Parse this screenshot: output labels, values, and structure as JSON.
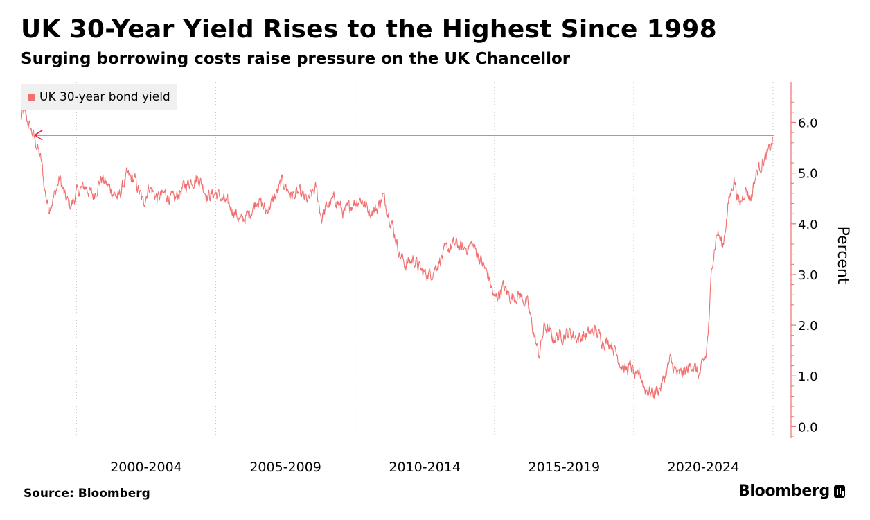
{
  "header": {
    "title": "UK 30-Year Yield Rises to the Highest Since 1998",
    "subtitle": "Surging borrowing costs raise pressure on the UK Chancellor"
  },
  "footer": {
    "source": "Source: Bloomberg",
    "brand": "Bloomberg",
    "brand_icon": "bloomberg-terminal-icon"
  },
  "colors": {
    "series": "#f07070",
    "reference_line": "#e8284a",
    "axis": "#f07070",
    "grid": "#c8c8c8",
    "legend_bg": "#f0f0f0"
  },
  "chart_data": {
    "type": "line",
    "title": "UK 30-Year Yield Rises to the Highest Since 1998",
    "subtitle": "Surging borrowing costs raise pressure on the UK Chancellor",
    "ylabel": "Percent",
    "xlabel": "",
    "ylim": [
      -0.2,
      6.8
    ],
    "xlim": [
      1998.0,
      2025.05
    ],
    "yticks": [
      0.0,
      1.0,
      2.0,
      3.0,
      4.0,
      5.0,
      6.0
    ],
    "ytick_labels": [
      "0.0",
      "1.0",
      "2.0",
      "3.0",
      "4.0",
      "5.0",
      "6.0"
    ],
    "y_axis_position": "right",
    "grid": "vertical dotted",
    "xgrid": [
      2000.0,
      2005.0,
      2010.0,
      2015.0,
      2020.0,
      2025.0
    ],
    "xtick_labels": [
      {
        "label": "2000-2004",
        "center": 2002.5
      },
      {
        "label": "2005-2009",
        "center": 2007.5
      },
      {
        "label": "2010-2014",
        "center": 2012.5
      },
      {
        "label": "2015-2019",
        "center": 2017.5
      },
      {
        "label": "2020-2024",
        "center": 2022.5
      }
    ],
    "legend": {
      "position": "top-left",
      "entries": [
        "UK 30-year bond yield"
      ]
    },
    "series": [
      {
        "name": "UK 30-year bond yield",
        "x": [
          1998.0,
          1998.1,
          1998.25,
          1998.45,
          1998.6,
          1998.75,
          1998.85,
          1999.0,
          1999.2,
          1999.4,
          1999.6,
          1999.8,
          2000.0,
          2000.3,
          2000.6,
          2000.9,
          2001.2,
          2001.5,
          2001.8,
          2002.1,
          2002.4,
          2002.6,
          2002.9,
          2003.2,
          2003.5,
          2003.8,
          2004.1,
          2004.4,
          2004.7,
          2005.0,
          2005.3,
          2005.6,
          2005.9,
          2006.2,
          2006.5,
          2006.8,
          2007.1,
          2007.4,
          2007.7,
          2008.0,
          2008.3,
          2008.6,
          2008.8,
          2009.0,
          2009.3,
          2009.6,
          2009.9,
          2010.2,
          2010.5,
          2010.8,
          2011.0,
          2011.3,
          2011.6,
          2011.8,
          2012.1,
          2012.4,
          2012.7,
          2013.0,
          2013.3,
          2013.6,
          2013.9,
          2014.2,
          2014.5,
          2014.8,
          2015.0,
          2015.3,
          2015.6,
          2015.9,
          2016.2,
          2016.45,
          2016.6,
          2016.8,
          2017.1,
          2017.4,
          2017.7,
          2018.0,
          2018.3,
          2018.6,
          2018.9,
          2019.2,
          2019.5,
          2019.7,
          2019.9,
          2020.1,
          2020.2,
          2020.4,
          2020.7,
          2021.0,
          2021.3,
          2021.6,
          2021.9,
          2022.1,
          2022.35,
          2022.6,
          2022.72,
          2022.8,
          2023.0,
          2023.2,
          2023.4,
          2023.6,
          2023.8,
          2024.0,
          2024.2,
          2024.4,
          2024.6,
          2024.8,
          2025.0
        ],
        "y": [
          6.05,
          6.2,
          6.0,
          5.75,
          5.5,
          5.2,
          4.7,
          4.3,
          4.55,
          4.9,
          4.5,
          4.35,
          4.6,
          4.75,
          4.55,
          4.9,
          4.7,
          4.5,
          4.95,
          4.85,
          4.4,
          4.75,
          4.5,
          4.6,
          4.45,
          4.7,
          4.85,
          4.9,
          4.55,
          4.6,
          4.45,
          4.3,
          4.05,
          4.2,
          4.5,
          4.25,
          4.5,
          4.85,
          4.55,
          4.6,
          4.45,
          4.7,
          4.1,
          4.35,
          4.5,
          4.2,
          4.4,
          4.5,
          4.25,
          4.3,
          4.55,
          4.05,
          3.4,
          3.2,
          3.3,
          3.05,
          3.0,
          3.25,
          3.5,
          3.6,
          3.5,
          3.6,
          3.3,
          2.95,
          2.5,
          2.75,
          2.55,
          2.6,
          2.4,
          1.75,
          1.4,
          2.0,
          1.75,
          1.8,
          1.85,
          1.75,
          1.8,
          1.9,
          1.7,
          1.65,
          1.3,
          1.1,
          1.2,
          0.9,
          1.1,
          0.75,
          0.65,
          0.8,
          1.3,
          1.0,
          1.1,
          1.25,
          1.0,
          1.4,
          2.2,
          3.2,
          3.85,
          3.55,
          4.4,
          4.9,
          4.35,
          4.7,
          4.5,
          5.0,
          5.2,
          5.35,
          5.65
        ]
      }
    ],
    "annotations": [
      {
        "type": "horizontal-arrow",
        "y": 5.75,
        "x_from": 2025.05,
        "x_to": 1998.5,
        "note": "Highest Since 1998"
      }
    ]
  }
}
